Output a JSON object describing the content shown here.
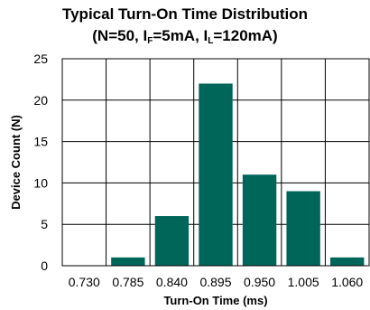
{
  "chart_data": {
    "type": "bar",
    "title_line1": "Typical Turn-On Time Distribution",
    "title_line2": {
      "prefix": "(N=50, I",
      "sub1": "F",
      "mid": "=5mA, I",
      "sub2": "L",
      "suffix": "=120mA)"
    },
    "xlabel": "Turn-On Time (ms)",
    "ylabel": "Device Count (N)",
    "categories": [
      "0.730",
      "0.785",
      "0.840",
      "0.895",
      "0.950",
      "1.005",
      "1.060"
    ],
    "values": [
      0,
      1,
      6,
      22,
      11,
      9,
      1
    ],
    "ylim": [
      0,
      25
    ],
    "yticks": [
      "0",
      "5",
      "10",
      "15",
      "20",
      "25"
    ],
    "grid": true,
    "bar_color": "#00665a"
  }
}
